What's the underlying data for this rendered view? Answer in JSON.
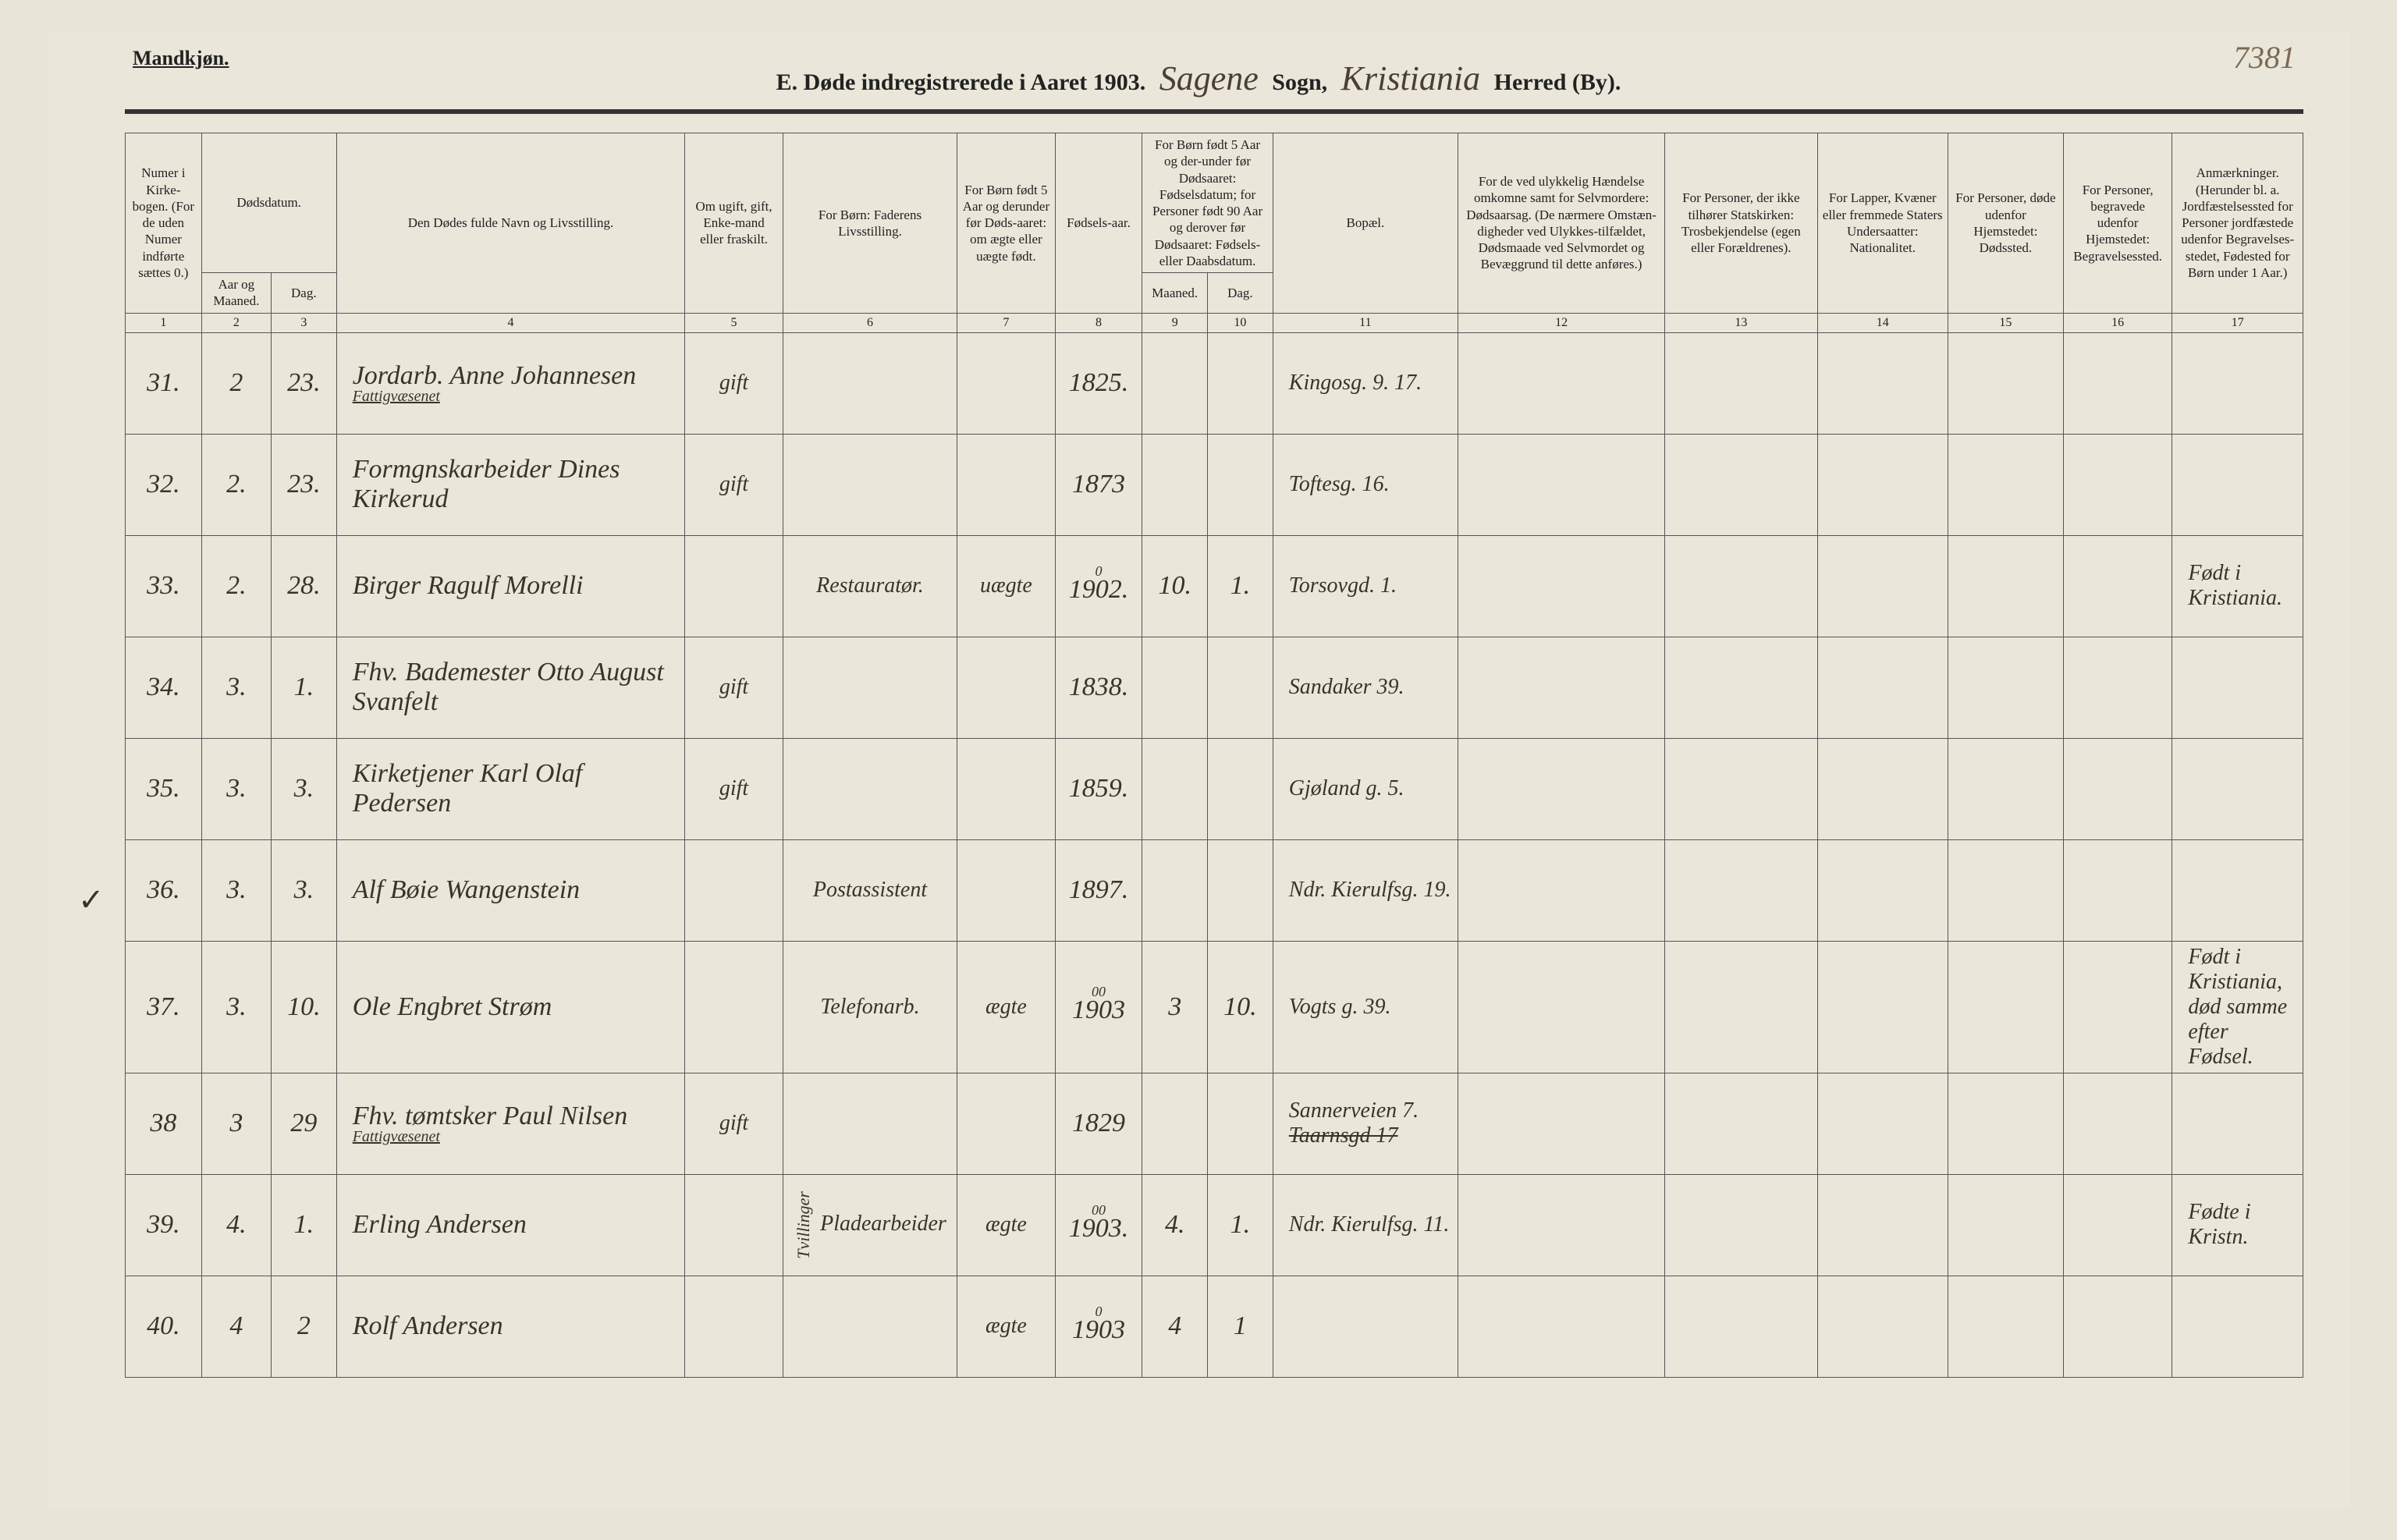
{
  "header": {
    "gender_label": "Mandkjøn.",
    "page_number": "7381",
    "title_prefix": "E.  Døde indregistrerede i Aaret 190",
    "year_suffix": "3.",
    "sogn_handwritten": "Sagene",
    "sogn_label": "Sogn,",
    "herred_handwritten": "Kristiania",
    "herred_label": "Herred (By)."
  },
  "columns": {
    "c1": "Numer i Kirke-bogen. (For de uden Numer indførte sættes 0.)",
    "c2_top": "Dødsdatum.",
    "c2a": "Aar og Maaned.",
    "c2b": "Dag.",
    "c3": "Den Dødes fulde Navn og Livsstilling.",
    "c4": "Om ugift, gift, Enke-mand eller fraskilt.",
    "c5": "For Børn: Faderens Livsstilling.",
    "c6": "For Børn født 5 Aar og derunder før Døds-aaret: om ægte eller uægte født.",
    "c7": "Fødsels-aar.",
    "c8_top": "For Børn født 5 Aar og der-under før Dødsaaret: Fødselsdatum; for Personer født 90 Aar og derover før Dødsaaret: Fødsels- eller Daabsdatum.",
    "c8a": "Maaned.",
    "c8b": "Dag.",
    "c9": "Bopæl.",
    "c10": "For de ved ulykkelig Hændelse omkomne samt for Selvmordere: Dødsaarsag. (De nærmere Omstæn-digheder ved Ulykkes-tilfældet, Dødsmaade ved Selvmordet og Bevæggrund til dette anføres.)",
    "c11": "For Personer, der ikke tilhører Statskirken: Trosbekjendelse (egen eller Forældrenes).",
    "c12": "For Lapper, Kvæner eller fremmede Staters Undersaatter: Nationalitet.",
    "c13": "For Personer, døde udenfor Hjemstedet: Dødssted.",
    "c14": "For Personer, begravede udenfor Hjemstedet: Begravelsessted.",
    "c15": "Anmærkninger. (Herunder bl. a. Jordfæstelsessted for Personer jordfæstede udenfor Begravelses-stedet, Fødested for Børn under 1 Aar.)"
  },
  "colnums": [
    "1",
    "2",
    "3",
    "4",
    "5",
    "6",
    "7",
    "8",
    "9",
    "10",
    "11",
    "12",
    "13",
    "14",
    "15",
    "16",
    "17"
  ],
  "year_note": "1903",
  "tick_mark": "✓",
  "rows": [
    {
      "num": "31.",
      "month": "2",
      "day": "23.",
      "name": "Jordarb. Anne Johannesen",
      "name_sub": "Fattigvæsenet",
      "status": "gift",
      "father": "",
      "legit": "",
      "birth_year": "1825.",
      "bm": "",
      "bd": "",
      "residence": "Kingosg. 9. 17.",
      "remarks": ""
    },
    {
      "num": "32.",
      "month": "2.",
      "day": "23.",
      "name": "Formgnskarbeider Dines Kirkerud",
      "name_sub": "",
      "status": "gift",
      "father": "",
      "legit": "",
      "birth_year": "1873",
      "bm": "",
      "bd": "",
      "residence": "Toftesg. 16.",
      "remarks": ""
    },
    {
      "num": "33.",
      "month": "2.",
      "day": "28.",
      "name": "Birger Ragulf Morelli",
      "name_sub": "",
      "status": "",
      "father": "Restauratør.",
      "legit": "uægte",
      "birth_year": "1902.",
      "birth_year_sup": "0",
      "bm": "10.",
      "bd": "1.",
      "residence": "Torsovgd. 1.",
      "remarks": "Født i Kristiania."
    },
    {
      "num": "34.",
      "month": "3.",
      "day": "1.",
      "name": "Fhv. Bademester Otto August Svanfelt",
      "name_sub": "",
      "status": "gift",
      "father": "",
      "legit": "",
      "birth_year": "1838.",
      "bm": "",
      "bd": "",
      "residence": "Sandaker 39.",
      "remarks": ""
    },
    {
      "num": "35.",
      "month": "3.",
      "day": "3.",
      "name": "Kirketjener Karl Olaf Pedersen",
      "name_sub": "",
      "status": "gift",
      "father": "",
      "legit": "",
      "birth_year": "1859.",
      "bm": "",
      "bd": "",
      "residence": "Gjøland g. 5.",
      "remarks": ""
    },
    {
      "num": "36.",
      "month": "3.",
      "day": "3.",
      "name": "Alf Bøie Wangenstein",
      "name_sub": "",
      "status": "",
      "father": "Postassistent",
      "legit": "",
      "birth_year": "1897.",
      "bm": "",
      "bd": "",
      "residence": "Ndr. Kierulfsg. 19.",
      "remarks": ""
    },
    {
      "num": "37.",
      "month": "3.",
      "day": "10.",
      "name": "Ole Engbret Strøm",
      "name_sub": "",
      "status": "",
      "father": "Telefonarb.",
      "legit": "ægte",
      "birth_year": "1903",
      "birth_year_sup": "00",
      "bm": "3",
      "bd": "10.",
      "residence": "Vogts g. 39.",
      "remarks": "Født i Kristiania, død samme efter Fødsel."
    },
    {
      "num": "38",
      "month": "3",
      "day": "29",
      "name": "Fhv. tømtsker Paul Nilsen",
      "name_sub": "Fattigvæsenet",
      "status": "gift",
      "father": "",
      "legit": "",
      "birth_year": "1829",
      "bm": "",
      "bd": "",
      "residence": "Sannerveien 7.",
      "residence_strike": "Taarnsgd 17",
      "remarks": ""
    },
    {
      "num": "39.",
      "month": "4.",
      "day": "1.",
      "name": "Erling Andersen",
      "name_sub": "",
      "status": "",
      "father": "Pladearbeider",
      "father_note": "Tvillinger",
      "legit": "ægte",
      "birth_year": "1903.",
      "birth_year_sup": "00",
      "bm": "4.",
      "bd": "1.",
      "residence": "Ndr. Kierulfsg. 11.",
      "remarks": "Fødte i Kristn."
    },
    {
      "num": "40.",
      "month": "4",
      "day": "2",
      "name": "Rolf Andersen",
      "name_sub": "",
      "status": "",
      "father": "",
      "legit": "ægte",
      "birth_year": "1903",
      "birth_year_sup": "0",
      "bm": "4",
      "bd": "1",
      "residence": "",
      "remarks": ""
    }
  ],
  "colors": {
    "paper": "#eae6d9",
    "ink": "#222222",
    "hand_ink": "#3b3426",
    "rule": "#555555"
  },
  "col_widths_pct": [
    3.5,
    3.2,
    3.0,
    16.0,
    4.5,
    8.0,
    4.5,
    4.0,
    3.0,
    3.0,
    8.5,
    9.5,
    7.0,
    6.0,
    5.3,
    5.0,
    6.0
  ]
}
